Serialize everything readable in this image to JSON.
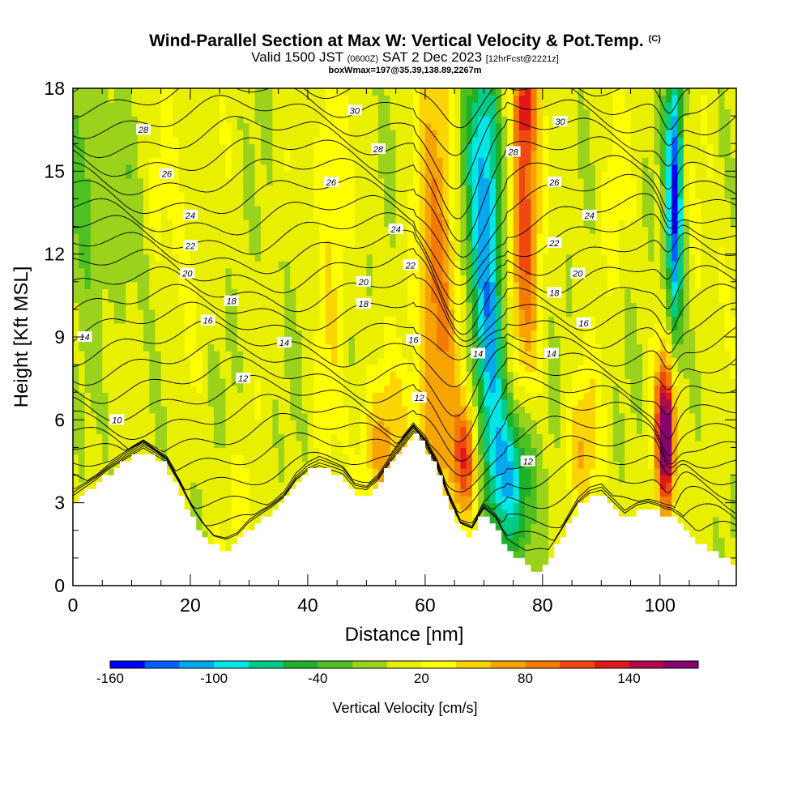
{
  "header": {
    "title": "Wind-Parallel Section at Max W: Vertical Velocity & Pot.Temp.",
    "copyright": "(C)",
    "valid_main": "Valid 1500 JST",
    "valid_utc": "(0600Z)",
    "valid_date": "SAT 2 Dec 2023",
    "forecast": "[12hrFcst@2221z]",
    "box_info": "boxWmax=197@35.39,138.89,2267m"
  },
  "chart_data": {
    "type": "heatmap",
    "xlabel": "Distance [nm]",
    "ylabel": "Height [Kft MSL]",
    "xlim": [
      0,
      113
    ],
    "ylim": [
      0,
      18
    ],
    "x_ticks": [
      0,
      20,
      40,
      60,
      80,
      100
    ],
    "y_ticks": [
      0,
      3,
      6,
      9,
      12,
      15,
      18
    ],
    "colorbar": {
      "label": "Vertical Velocity [cm/s]",
      "tick_labels": [
        "-160",
        "-100",
        "-40",
        "20",
        "80",
        "140"
      ],
      "tick_values": [
        -160,
        -100,
        -40,
        20,
        80,
        140
      ],
      "levels": [
        -160,
        -140,
        -120,
        -100,
        -80,
        -60,
        -40,
        -20,
        0,
        20,
        40,
        60,
        80,
        100,
        120,
        140,
        160,
        180
      ],
      "colors": [
        "#0000ff",
        "#0060ff",
        "#00a8f0",
        "#00e6e6",
        "#00cc88",
        "#1fb02a",
        "#4ec022",
        "#9ad21c",
        "#e8f000",
        "#ffff00",
        "#fcd400",
        "#f8a400",
        "#f57a00",
        "#f04810",
        "#e01818",
        "#b00848",
        "#880070"
      ]
    },
    "terrain_top_kft": [
      [
        0,
        3.0
      ],
      [
        2,
        3.3
      ],
      [
        4,
        3.6
      ],
      [
        6,
        4.0
      ],
      [
        8,
        4.3
      ],
      [
        10,
        4.6
      ],
      [
        12,
        4.9
      ],
      [
        14,
        4.6
      ],
      [
        16,
        4.3
      ],
      [
        18,
        3.5
      ],
      [
        20,
        2.6
      ],
      [
        22,
        1.9
      ],
      [
        24,
        1.4
      ],
      [
        26,
        1.3
      ],
      [
        28,
        1.5
      ],
      [
        30,
        2.0
      ],
      [
        32,
        2.3
      ],
      [
        34,
        2.6
      ],
      [
        36,
        3.0
      ],
      [
        38,
        3.7
      ],
      [
        40,
        4.1
      ],
      [
        42,
        4.3
      ],
      [
        44,
        4.1
      ],
      [
        46,
        3.9
      ],
      [
        48,
        3.3
      ],
      [
        50,
        3.2
      ],
      [
        52,
        3.6
      ],
      [
        54,
        4.3
      ],
      [
        56,
        4.9
      ],
      [
        58,
        5.5
      ],
      [
        60,
        5.0
      ],
      [
        62,
        4.2
      ],
      [
        64,
        3.0
      ],
      [
        66,
        2.0
      ],
      [
        68,
        1.8
      ],
      [
        70,
        2.6
      ],
      [
        72,
        2.2
      ],
      [
        74,
        1.3
      ],
      [
        76,
        1.0
      ],
      [
        78,
        0.7
      ],
      [
        79,
        0.3
      ],
      [
        80,
        0.6
      ],
      [
        82,
        1.2
      ],
      [
        84,
        2.0
      ],
      [
        86,
        2.8
      ],
      [
        88,
        3.2
      ],
      [
        90,
        3.3
      ],
      [
        92,
        2.8
      ],
      [
        94,
        2.3
      ],
      [
        96,
        2.6
      ],
      [
        98,
        2.7
      ],
      [
        100,
        2.6
      ],
      [
        102,
        2.5
      ],
      [
        104,
        2.1
      ],
      [
        106,
        1.6
      ],
      [
        108,
        1.4
      ],
      [
        110,
        1.1
      ],
      [
        113,
        0.7
      ]
    ],
    "w_features": [
      {
        "x": 62,
        "y": 10,
        "sx": 2.5,
        "sy": 6.5,
        "amp": 85
      },
      {
        "x": 67,
        "y": 4.5,
        "sx": 1.6,
        "sy": 1.5,
        "amp": 110
      },
      {
        "x": 77,
        "y": 14,
        "sx": 1.8,
        "sy": 4.5,
        "amp": 110
      },
      {
        "x": 77,
        "y": 17.5,
        "sx": 1.3,
        "sy": 1.2,
        "amp": 60
      },
      {
        "x": 70,
        "y": 14.5,
        "sx": 2.2,
        "sy": 3.8,
        "amp": -120
      },
      {
        "x": 74,
        "y": 4.0,
        "sx": 3.0,
        "sy": 2.0,
        "amp": -110
      },
      {
        "x": 71,
        "y": 8.5,
        "sx": 1.6,
        "sy": 2.5,
        "amp": -70
      },
      {
        "x": 101,
        "y": 5.5,
        "sx": 1.2,
        "sy": 2.0,
        "amp": 190
      },
      {
        "x": 102.5,
        "y": 14,
        "sx": 1.0,
        "sy": 3.8,
        "amp": -150
      },
      {
        "x": 53,
        "y": 5.0,
        "sx": 3.0,
        "sy": 2.0,
        "amp": 60
      },
      {
        "x": 44,
        "y": 15.5,
        "sx": 2.0,
        "sy": 3.5,
        "amp": 40
      },
      {
        "x": 44,
        "y": 8.0,
        "sx": 2.0,
        "sy": 3.0,
        "amp": 22
      },
      {
        "x": 87,
        "y": 5.0,
        "sx": 2.0,
        "sy": 2.0,
        "amp": 55
      },
      {
        "x": 16,
        "y": 13.5,
        "sx": 5.0,
        "sy": 4.0,
        "amp": 20
      },
      {
        "x": 2,
        "y": 15.0,
        "sx": 2.5,
        "sy": 3.0,
        "amp": -40
      },
      {
        "x": 10,
        "y": 13.0,
        "sx": 3.0,
        "sy": 3.0,
        "amp": -25
      },
      {
        "x": 29,
        "y": 3.0,
        "sx": 2.5,
        "sy": 1.5,
        "amp": 25
      },
      {
        "x": 92,
        "y": 14.0,
        "sx": 2.0,
        "sy": 3.0,
        "amp": 22
      },
      {
        "x": 108,
        "y": 12.0,
        "sx": 3.0,
        "sy": 4.0,
        "amp": 15
      }
    ],
    "isentrope_labels": [
      {
        "text": "30",
        "x": 48,
        "y": 17.2
      },
      {
        "text": "28",
        "x": 12,
        "y": 16.5
      },
      {
        "text": "28",
        "x": 52,
        "y": 15.8
      },
      {
        "text": "26",
        "x": 16,
        "y": 14.9
      },
      {
        "text": "26",
        "x": 44,
        "y": 14.6
      },
      {
        "text": "24",
        "x": 20,
        "y": 13.4
      },
      {
        "text": "22",
        "x": 20,
        "y": 12.3
      },
      {
        "text": "20",
        "x": 19.5,
        "y": 11.3
      },
      {
        "text": "24",
        "x": 55,
        "y": 12.9
      },
      {
        "text": "22",
        "x": 57.5,
        "y": 11.6
      },
      {
        "text": "20",
        "x": 49.5,
        "y": 11.0
      },
      {
        "text": "18",
        "x": 27,
        "y": 10.3
      },
      {
        "text": "18",
        "x": 49.5,
        "y": 10.2
      },
      {
        "text": "16",
        "x": 23,
        "y": 9.6
      },
      {
        "text": "16",
        "x": 58,
        "y": 8.9
      },
      {
        "text": "14",
        "x": 2,
        "y": 9.0
      },
      {
        "text": "14",
        "x": 36,
        "y": 8.8
      },
      {
        "text": "14",
        "x": 69,
        "y": 8.4
      },
      {
        "text": "14",
        "x": 81.5,
        "y": 8.4
      },
      {
        "text": "12",
        "x": 29,
        "y": 7.5
      },
      {
        "text": "12",
        "x": 59,
        "y": 6.8
      },
      {
        "text": "12",
        "x": 77.5,
        "y": 4.5
      },
      {
        "text": "10",
        "x": 7.5,
        "y": 6.0
      },
      {
        "text": "30",
        "x": 83,
        "y": 16.8
      },
      {
        "text": "28",
        "x": 75,
        "y": 15.7
      },
      {
        "text": "26",
        "x": 82,
        "y": 14.6
      },
      {
        "text": "24",
        "x": 88,
        "y": 13.4
      },
      {
        "text": "22",
        "x": 82,
        "y": 12.4
      },
      {
        "text": "20",
        "x": 86,
        "y": 11.3
      },
      {
        "text": "18",
        "x": 82,
        "y": 10.6
      },
      {
        "text": "16",
        "x": 87,
        "y": 9.5
      }
    ]
  }
}
